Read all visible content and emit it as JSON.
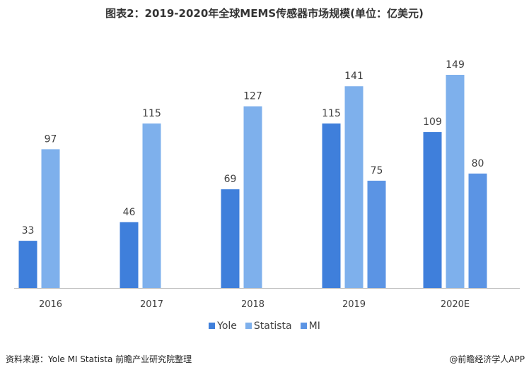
{
  "chart_data": {
    "type": "bar",
    "title": "图表2：2019-2020年全球MEMS传感器市场规模(单位：亿美元)",
    "categories": [
      "2016",
      "2017",
      "2018",
      "2019",
      "2020E"
    ],
    "series": [
      {
        "name": "Yole",
        "values": [
          33,
          46,
          69,
          115,
          109
        ],
        "color": "#3f7fdb"
      },
      {
        "name": "Statista",
        "values": [
          97,
          115,
          127,
          141,
          149
        ],
        "color": "#7eb0ec"
      },
      {
        "name": "MI",
        "values": [
          null,
          null,
          null,
          75,
          80
        ],
        "color": "#5b94e4"
      }
    ],
    "ylim": [
      0,
      150
    ],
    "grid": false,
    "legend": "bottom"
  },
  "footer": {
    "source": "资料来源：Yole MI Statista 前瞻产业研究院整理",
    "credit": "@前瞻经济学人APP"
  }
}
